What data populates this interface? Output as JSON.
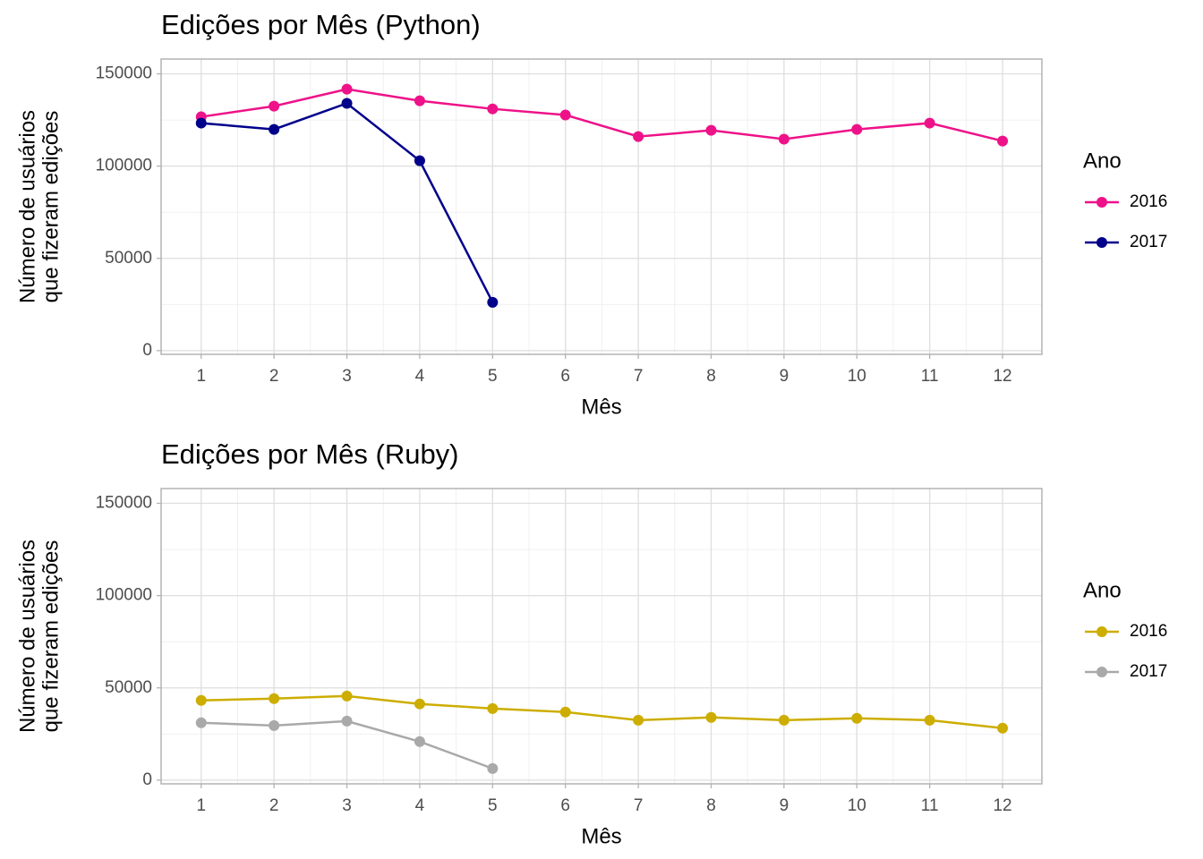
{
  "chart_data": [
    {
      "type": "line",
      "title": "Edições por Mês (Python)",
      "xlabel": "Mês",
      "ylabel": [
        "Número de usuários",
        "que fizeram edições"
      ],
      "legend_title": "Ano",
      "x": [
        1,
        2,
        3,
        4,
        5,
        6,
        7,
        8,
        9,
        10,
        11,
        12
      ],
      "series": [
        {
          "name": "2016",
          "color": "#ee1289",
          "values": [
            126700,
            132500,
            141700,
            135400,
            131000,
            127700,
            116000,
            119400,
            114600,
            119900,
            123300,
            113600
          ]
        },
        {
          "name": "2017",
          "color": "#00008b",
          "values": [
            123300,
            119900,
            134000,
            102900,
            26200,
            null,
            null,
            null,
            null,
            null,
            null,
            null
          ]
        }
      ],
      "xlim": [
        0.45,
        12.54
      ],
      "xticks": [
        1,
        2,
        3,
        4,
        5,
        6,
        7,
        8,
        9,
        10,
        11,
        12
      ],
      "ylim": [
        -2000,
        158000
      ],
      "yticks": [
        0,
        50000,
        100000,
        150000
      ],
      "grid": true,
      "legend": "right"
    },
    {
      "type": "line",
      "title": "Edições por Mês (Ruby)",
      "xlabel": "Mês",
      "ylabel": [
        "Número de usuários",
        "que fizeram edições"
      ],
      "legend_title": "Ano",
      "x": [
        1,
        2,
        3,
        4,
        5,
        6,
        7,
        8,
        9,
        10,
        11,
        12
      ],
      "series": [
        {
          "name": "2016",
          "color": "#cdad00",
          "values": [
            43200,
            44200,
            45600,
            41300,
            38800,
            36900,
            32500,
            34000,
            32500,
            33500,
            32500,
            28200
          ]
        },
        {
          "name": "2017",
          "color": "#a9a9a9",
          "values": [
            31100,
            29600,
            32000,
            20900,
            6300,
            null,
            null,
            null,
            null,
            null,
            null,
            null
          ]
        }
      ],
      "xlim": [
        0.45,
        12.54
      ],
      "xticks": [
        1,
        2,
        3,
        4,
        5,
        6,
        7,
        8,
        9,
        10,
        11,
        12
      ],
      "ylim": [
        -2000,
        158000
      ],
      "yticks": [
        0,
        50000,
        100000,
        150000
      ],
      "grid": true,
      "legend": "right"
    }
  ]
}
